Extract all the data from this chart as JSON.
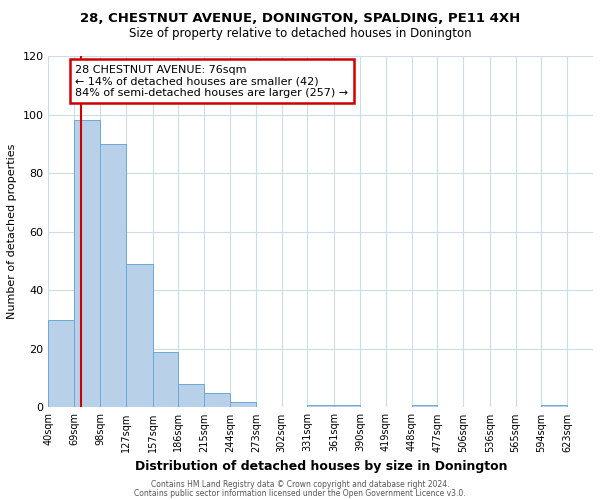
{
  "title": "28, CHESTNUT AVENUE, DONINGTON, SPALDING, PE11 4XH",
  "subtitle": "Size of property relative to detached houses in Donington",
  "xlabel": "Distribution of detached houses by size in Donington",
  "ylabel": "Number of detached properties",
  "bin_labels": [
    "40sqm",
    "69sqm",
    "98sqm",
    "127sqm",
    "157sqm",
    "186sqm",
    "215sqm",
    "244sqm",
    "273sqm",
    "302sqm",
    "331sqm",
    "361sqm",
    "390sqm",
    "419sqm",
    "448sqm",
    "477sqm",
    "506sqm",
    "536sqm",
    "565sqm",
    "594sqm",
    "623sqm"
  ],
  "bar_heights": [
    30,
    98,
    90,
    49,
    19,
    8,
    5,
    2,
    0,
    0,
    1,
    1,
    0,
    0,
    1,
    0,
    0,
    0,
    0,
    1,
    0
  ],
  "bar_color": "#b8d0e8",
  "bar_edge_color": "#6aaad4",
  "property_line_x": 76,
  "bin_edges": [
    40,
    69,
    98,
    127,
    157,
    186,
    215,
    244,
    273,
    302,
    331,
    361,
    390,
    419,
    448,
    477,
    506,
    536,
    565,
    594,
    623,
    652
  ],
  "annotation_title": "28 CHESTNUT AVENUE: 76sqm",
  "annotation_line1": "← 14% of detached houses are smaller (42)",
  "annotation_line2": "84% of semi-detached houses are larger (257) →",
  "annotation_box_color": "#ffffff",
  "annotation_border_color": "#cc0000",
  "vline_color": "#cc0000",
  "ylim": [
    0,
    120
  ],
  "yticks": [
    0,
    20,
    40,
    60,
    80,
    100,
    120
  ],
  "grid_color": "#ccdde8",
  "footer1": "Contains HM Land Registry data © Crown copyright and database right 2024.",
  "footer2": "Contains public sector information licensed under the Open Government Licence v3.0."
}
